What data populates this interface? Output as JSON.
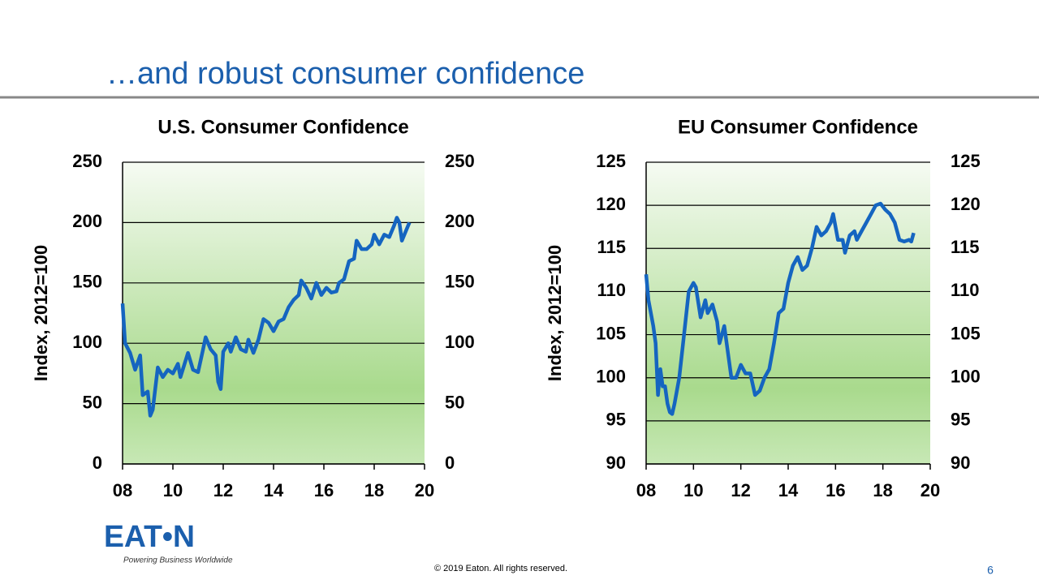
{
  "slide": {
    "title": "…and robust consumer confidence",
    "logo": "EAT•N",
    "tagline": "Powering Business Worldwide",
    "footer": "© 2019 Eaton. All rights reserved.",
    "page_number": "6"
  },
  "chart_data": [
    {
      "type": "line",
      "title": "U.S. Consumer Confidence",
      "y_label": "Index, 2012=100",
      "x": [
        8.0,
        8.1,
        8.3,
        8.5,
        8.7,
        8.8,
        9.0,
        9.1,
        9.2,
        9.4,
        9.6,
        9.8,
        10.0,
        10.2,
        10.3,
        10.6,
        10.8,
        11.0,
        11.2,
        11.3,
        11.5,
        11.7,
        11.8,
        11.9,
        12.0,
        12.2,
        12.3,
        12.5,
        12.7,
        12.9,
        13.0,
        13.2,
        13.4,
        13.6,
        13.8,
        14.0,
        14.2,
        14.4,
        14.6,
        14.8,
        15.0,
        15.1,
        15.3,
        15.5,
        15.7,
        15.9,
        16.1,
        16.3,
        16.5,
        16.6,
        16.8,
        17.0,
        17.2,
        17.3,
        17.5,
        17.7,
        17.9,
        18.0,
        18.2,
        18.4,
        18.6,
        18.8,
        18.9,
        19.0,
        19.1,
        19.3,
        19.4
      ],
      "series": [
        {
          "color": "#1565c0",
          "values": [
            133,
            100,
            92,
            78,
            90,
            57,
            60,
            40,
            45,
            80,
            72,
            78,
            75,
            83,
            72,
            92,
            78,
            76,
            95,
            105,
            95,
            90,
            68,
            62,
            93,
            100,
            93,
            105,
            95,
            93,
            103,
            92,
            103,
            120,
            117,
            110,
            118,
            120,
            130,
            136,
            140,
            152,
            146,
            137,
            150,
            140,
            146,
            142,
            143,
            150,
            153,
            168,
            170,
            185,
            178,
            178,
            182,
            190,
            182,
            190,
            188,
            198,
            204,
            200,
            185,
            195,
            200
          ]
        }
      ],
      "xlim": [
        8,
        20
      ],
      "xticks": [
        {
          "value": 8,
          "label": "08"
        },
        10,
        12,
        14,
        16,
        18,
        20
      ],
      "ylim": [
        0,
        250
      ],
      "yticks": [
        0,
        50,
        100,
        150,
        200,
        250
      ],
      "y2lim": [
        0,
        250
      ],
      "y2ticks": [
        0,
        50,
        100,
        150,
        200,
        250
      ],
      "grid": true
    },
    {
      "type": "line",
      "title": "EU Consumer Confidence",
      "y_label": "Index, 2012=100",
      "x": [
        8.0,
        8.1,
        8.3,
        8.4,
        8.5,
        8.6,
        8.7,
        8.8,
        8.9,
        9.0,
        9.1,
        9.2,
        9.4,
        9.6,
        9.8,
        10.0,
        10.1,
        10.3,
        10.5,
        10.6,
        10.8,
        11.0,
        11.1,
        11.3,
        11.5,
        11.6,
        11.8,
        12.0,
        12.2,
        12.4,
        12.6,
        12.8,
        13.0,
        13.2,
        13.4,
        13.6,
        13.8,
        14.0,
        14.2,
        14.4,
        14.6,
        14.8,
        15.0,
        15.2,
        15.4,
        15.6,
        15.8,
        15.9,
        16.1,
        16.3,
        16.4,
        16.6,
        16.8,
        16.9,
        17.1,
        17.3,
        17.5,
        17.7,
        17.9,
        18.1,
        18.3,
        18.5,
        18.7,
        18.9,
        19.1,
        19.2,
        19.3
      ],
      "series": [
        {
          "color": "#1565c0",
          "values": [
            112,
            109,
            106,
            104,
            98,
            101,
            99,
            99,
            97,
            96,
            95.8,
            97,
            100,
            105,
            110,
            111,
            110.5,
            107,
            109,
            107.5,
            108.5,
            106.5,
            104,
            106,
            102,
            100,
            100,
            101.5,
            100.5,
            100.5,
            98,
            98.5,
            100,
            101,
            104,
            107.5,
            108,
            111,
            113,
            114,
            112.5,
            113,
            115,
            117.5,
            116.5,
            117,
            118,
            119,
            116,
            116,
            114.5,
            116.5,
            117,
            116,
            117,
            118,
            119,
            120,
            120.2,
            119.5,
            119,
            118,
            116,
            115.8,
            116,
            115.8,
            116.8
          ]
        }
      ],
      "xlim": [
        8,
        20
      ],
      "xticks": [
        {
          "value": 8,
          "label": "08"
        },
        10,
        12,
        14,
        16,
        18,
        20
      ],
      "ylim": [
        90,
        125
      ],
      "yticks": [
        90,
        95,
        100,
        105,
        110,
        115,
        120,
        125
      ],
      "y2lim": [
        90,
        125
      ],
      "y2ticks": [
        90,
        95,
        100,
        105,
        110,
        115,
        120,
        125
      ],
      "grid": true
    }
  ]
}
